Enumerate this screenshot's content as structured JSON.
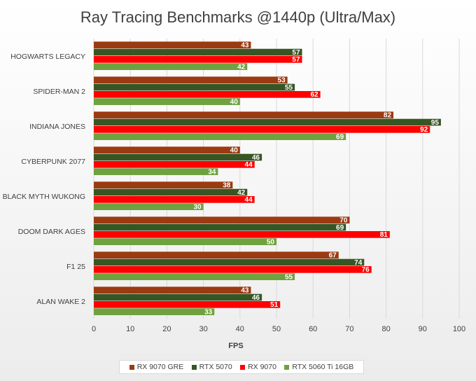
{
  "chart_data": {
    "type": "bar",
    "orientation": "horizontal",
    "title": "Ray Tracing Benchmarks @1440p (Ultra/Max)",
    "xlabel": "FPS",
    "ylabel": "",
    "xlim": [
      0,
      100
    ],
    "x_ticks": [
      0,
      10,
      20,
      30,
      40,
      50,
      60,
      70,
      80,
      90,
      100
    ],
    "grid": "vertical",
    "legend_position": "bottom",
    "categories": [
      "HOGWARTS LEGACY",
      "SPIDER-MAN 2",
      "INDIANA JONES",
      "CYBERPUNK 2077",
      "BLACK MYTH WUKONG",
      "DOOM DARK AGES",
      "F1 25",
      "ALAN WAKE 2"
    ],
    "series": [
      {
        "name": "RX 9070 GRE",
        "color": "#9c3a12",
        "values": [
          43,
          53,
          82,
          40,
          38,
          70,
          67,
          43
        ]
      },
      {
        "name": "RTX 5070",
        "color": "#375623",
        "values": [
          57,
          55,
          95,
          46,
          42,
          69,
          74,
          46
        ]
      },
      {
        "name": "RX 9070",
        "color": "#ff0000",
        "values": [
          57,
          62,
          92,
          44,
          44,
          81,
          76,
          51
        ]
      },
      {
        "name": "RTX 5060 Ti 16GB",
        "color": "#6fa23f",
        "values": [
          42,
          40,
          69,
          34,
          30,
          50,
          55,
          33
        ]
      }
    ]
  }
}
